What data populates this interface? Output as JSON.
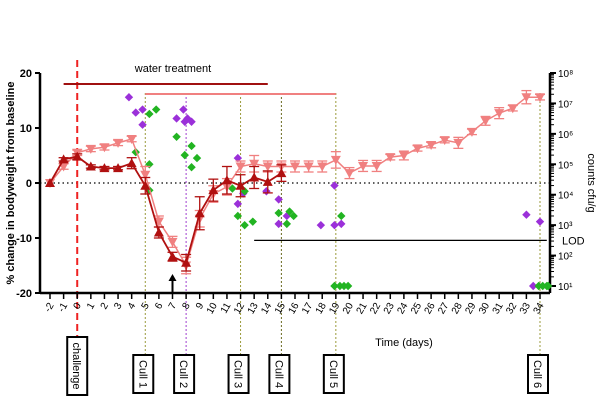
{
  "chart_data": {
    "type": "line",
    "xlabel": "Time (days)",
    "ylabel": "% change in bodyweight from baseline",
    "y2label": "counts cfu/g",
    "xlim": [
      -2,
      34
    ],
    "ylim": [
      -20,
      20
    ],
    "y2lim": [
      10,
      100000000
    ],
    "y2scale": "log",
    "x_ticks": [
      "-2",
      "-1",
      "0",
      "1",
      "2",
      "3",
      "4",
      "5",
      "6",
      "7",
      "8",
      "9",
      "10",
      "11",
      "12",
      "13",
      "14",
      "15",
      "16",
      "17",
      "18",
      "19",
      "20",
      "21",
      "22",
      "23",
      "24",
      "25",
      "26",
      "27",
      "28",
      "29",
      "30",
      "31",
      "32",
      "33",
      "34"
    ],
    "y_ticks": [
      "-20",
      "-10",
      "0",
      "10",
      "20"
    ],
    "y2_ticks": [
      "10¹",
      "10²",
      "10³",
      "10⁴",
      "10⁵",
      "10⁶",
      "10⁷",
      "10⁸"
    ],
    "series": [
      {
        "color": "#f08080",
        "marker": "triangle-down",
        "axis": "left",
        "x": [
          -2,
          -1,
          0,
          1,
          2,
          3,
          4,
          5,
          6,
          7,
          8,
          9,
          10,
          11,
          12,
          13,
          14,
          15,
          16,
          17,
          18,
          19,
          20,
          21,
          22,
          23,
          24,
          25,
          26,
          27,
          28,
          29,
          30,
          31,
          32,
          33,
          34
        ],
        "y": [
          0,
          3,
          5.5,
          6.2,
          6.5,
          7.3,
          8,
          1.5,
          -7,
          -10.7,
          -15,
          -6.5,
          -2,
          -0.7,
          3,
          3.5,
          3,
          3,
          3,
          3,
          3,
          4.2,
          1.8,
          3.1,
          3.1,
          4.7,
          5,
          6.3,
          6.9,
          7.8,
          7.3,
          9.3,
          11.3,
          12.7,
          13.6,
          15.6,
          15.6
        ],
        "err": [
          0,
          0.5,
          0.5,
          0.5,
          0.5,
          0.5,
          0.5,
          1.5,
          1,
          1,
          1.5,
          1.5,
          1.5,
          1.5,
          1,
          1.5,
          1,
          1,
          1,
          1,
          1,
          1.5,
          1,
          1,
          1,
          0.5,
          0.8,
          0.5,
          0.5,
          0.5,
          1,
          0.5,
          0.8,
          1,
          0.5,
          1.2,
          0.5
        ]
      },
      {
        "color": "#b01010",
        "marker": "triangle-up",
        "axis": "left",
        "x": [
          -2,
          -1,
          0,
          1,
          2,
          3,
          4,
          5,
          6,
          7,
          8,
          9,
          10,
          11,
          12,
          13,
          14,
          15
        ],
        "y": [
          0,
          4.3,
          4.8,
          3,
          2.7,
          2.7,
          3.6,
          -0.5,
          -9,
          -13.4,
          -14.5,
          -5.5,
          -1.3,
          0.5,
          -0.5,
          1,
          0.2,
          1.8
        ],
        "err": [
          0,
          0.3,
          0.5,
          0.3,
          0.3,
          0.3,
          1,
          1.5,
          1,
          0.8,
          1.5,
          3,
          2,
          2.5,
          2,
          2,
          2,
          1.5
        ]
      }
    ],
    "scatter": [
      {
        "color": "#9b30d9",
        "marker": "diamond",
        "axis": "right",
        "points": [
          [
            3.8,
            16000000
          ],
          [
            4.3,
            5000000
          ],
          [
            4.8,
            6300000
          ],
          [
            4.8,
            2000000
          ],
          [
            7.3,
            3200000
          ],
          [
            7.8,
            6300000
          ],
          [
            7.9,
            2500000
          ],
          [
            8.1,
            3200000
          ],
          [
            8.4,
            2500000
          ],
          [
            11.8,
            160000
          ],
          [
            11.8,
            5000
          ],
          [
            12.2,
            11000
          ],
          [
            13.9,
            13000
          ],
          [
            14.8,
            7000
          ],
          [
            15.4,
            2000
          ],
          [
            14.8,
            1100
          ],
          [
            17.9,
            1000
          ],
          [
            18.9,
            20000
          ],
          [
            18.9,
            1000
          ],
          [
            19.4,
            1100
          ],
          [
            33.0,
            2200
          ],
          [
            34.0,
            1300
          ],
          [
            33.5,
            10
          ]
        ]
      },
      {
        "color": "#22b422",
        "marker": "diamond",
        "axis": "right",
        "points": [
          [
            4.3,
            250000
          ],
          [
            5.3,
            4500000
          ],
          [
            5.3,
            100000
          ],
          [
            5.3,
            14000
          ],
          [
            5.8,
            6300000
          ],
          [
            7.3,
            800000
          ],
          [
            7.9,
            200000
          ],
          [
            8.4,
            400000
          ],
          [
            8.4,
            80000
          ],
          [
            8.8,
            160000
          ],
          [
            11.4,
            16000
          ],
          [
            12.3,
            13000
          ],
          [
            12.3,
            1000
          ],
          [
            11.8,
            2000
          ],
          [
            12.9,
            1300
          ],
          [
            14.8,
            2500
          ],
          [
            15.6,
            2800
          ],
          [
            15.9,
            2000
          ],
          [
            15.4,
            1100
          ],
          [
            19.4,
            2000
          ],
          [
            18.9,
            10
          ],
          [
            19.3,
            10
          ],
          [
            19.6,
            10
          ],
          [
            19.9,
            10
          ],
          [
            33.9,
            10
          ],
          [
            34.2,
            10
          ],
          [
            34.5,
            10
          ],
          [
            34.6,
            10
          ]
        ]
      }
    ],
    "reference_lines": {
      "zero": {
        "y": 0,
        "style": "dotted"
      },
      "challenge": {
        "day": 0,
        "color": "#ee2222",
        "label": "challenge"
      },
      "lod": {
        "from_day": 13,
        "to_day": 34.5,
        "value": 316,
        "label": "LOD"
      }
    },
    "culls": [
      {
        "day": 5,
        "label": "Cull 1",
        "color": "#9a9a3a"
      },
      {
        "day": 8,
        "label": "Cull 2",
        "color": "#a040d0"
      },
      {
        "day": 12,
        "label": "Cull 3",
        "color": "#9a9a3a"
      },
      {
        "day": 15,
        "label": "Cull 4",
        "color": "#6a6a20"
      },
      {
        "day": 19,
        "label": "Cull 5",
        "color": "#9a9a3a"
      },
      {
        "day": 34,
        "label": "Cull 6",
        "color": "#9a9a3a"
      }
    ],
    "treatment": {
      "label": "water treatment",
      "bars": [
        {
          "from_day": -1,
          "to_day": 14,
          "color": "#a01010"
        },
        {
          "from_day": 5,
          "to_day": 19,
          "color": "#f08080"
        }
      ]
    },
    "arrow_day": 7,
    "grid": false
  }
}
